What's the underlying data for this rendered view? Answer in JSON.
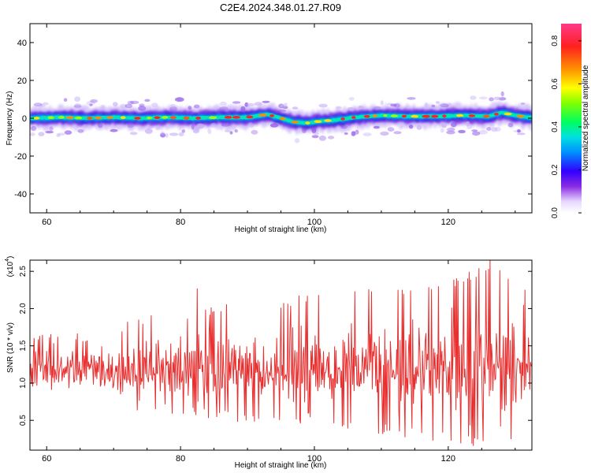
{
  "title": "C2E4.2024.348.01.27.R09",
  "chart_data": [
    {
      "type": "heatmap",
      "title": "C2E4.2024.348.01.27.R09",
      "xlabel": "Height of straight line (km)",
      "ylabel": "Frequency (Hz)",
      "xlim": [
        57.5,
        132.5
      ],
      "ylim": [
        -50,
        50
      ],
      "x_ticks": [
        "60",
        "80",
        "100",
        "120"
      ],
      "y_ticks": [
        "40",
        "20",
        "0",
        "-20",
        "-40"
      ],
      "colorbar": {
        "label": "Normalized spectral amplitude",
        "ticks": [
          "0.0",
          "0.2",
          "0.4",
          "0.6",
          "0.8"
        ],
        "range": [
          0,
          0.88
        ]
      },
      "ridge": {
        "x": [
          58,
          62,
          66,
          70,
          74,
          78,
          82,
          86,
          90,
          93,
          95,
          97,
          99,
          101,
          103,
          106,
          110,
          114,
          118,
          122,
          126,
          128,
          130,
          132
        ],
        "y": [
          0,
          0.5,
          0,
          0.5,
          0,
          0.5,
          0,
          0.5,
          0.5,
          2,
          0,
          -2,
          -2.5,
          -1.5,
          -1,
          0.5,
          1.5,
          1,
          1,
          1.5,
          1,
          3,
          1.5,
          0.5
        ]
      }
    },
    {
      "type": "line",
      "xlabel": "Height of straight line (km)",
      "ylabel": "SNR (10 * v/v)",
      "y_scale_label": "(x10",
      "y_scale_exp": "4",
      "xlim": [
        57.5,
        132.5
      ],
      "ylim": [
        0.1,
        2.65
      ],
      "x_ticks": [
        "60",
        "80",
        "100",
        "120"
      ],
      "y_ticks": [
        "0.5",
        "1.0",
        "1.5",
        "2.0",
        "2.5"
      ],
      "series": [
        {
          "color": "#e83030",
          "x_start": 57.5,
          "x_end": 132.5,
          "envelope": {
            "x": [
              57.5,
              70,
              72,
              80,
              90,
              100,
              110,
              120,
              126,
              132.5
            ],
            "low": [
              0.9,
              0.9,
              0.6,
              0.55,
              0.45,
              0.45,
              0.3,
              0.2,
              0.1,
              0.1
            ],
            "high": [
              1.65,
              1.7,
              1.9,
              2.0,
              2.1,
              2.2,
              2.3,
              2.35,
              2.65,
              2.2
            ]
          },
          "peaks": [
            {
              "x": 82.5,
              "y": 2.27
            },
            {
              "x": 118.5,
              "y": 2.3
            },
            {
              "x": 126.3,
              "y": 2.65
            },
            {
              "x": 131.3,
              "y": 2.05
            }
          ]
        }
      ]
    }
  ]
}
